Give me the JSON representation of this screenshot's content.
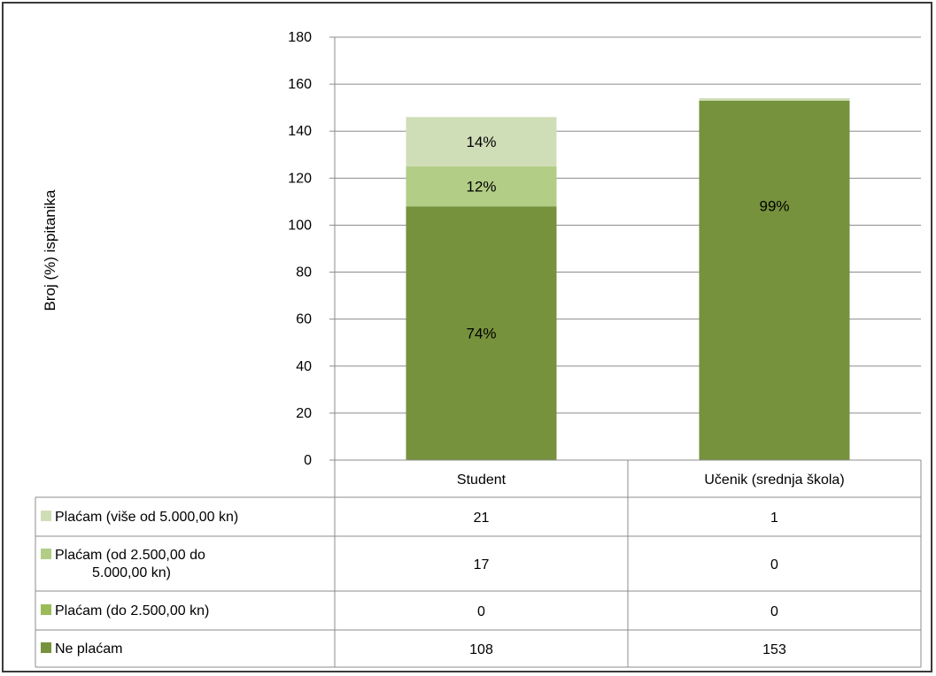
{
  "chart_data": {
    "type": "bar",
    "stacked": true,
    "ylabel": "Broj (%) ispitanika",
    "ylim": [
      0,
      180
    ],
    "yticks": [
      0,
      20,
      40,
      60,
      80,
      100,
      120,
      140,
      160,
      180
    ],
    "categories": [
      "Student",
      "Učenik (srednja škola)"
    ],
    "grid": true,
    "series": [
      {
        "name": "Ne plaćam",
        "values": [
          108,
          153
        ],
        "labels": [
          "74%",
          "99%"
        ],
        "color": "#76923c"
      },
      {
        "name": "Plaćam (do 2.500,00 kn)",
        "values": [
          0,
          0
        ],
        "labels": [
          "",
          ""
        ],
        "color": "#9bbb59"
      },
      {
        "name": "Plaćam (od 2.500,00 do 5.000,00 kn)",
        "values": [
          17,
          0
        ],
        "labels": [
          "12%",
          ""
        ],
        "color": "#b2cd85"
      },
      {
        "name": "Plaćam (više od 5.000,00 kn)",
        "values": [
          21,
          1
        ],
        "labels": [
          "14%",
          ""
        ],
        "color": "#d0deb8"
      }
    ],
    "table_rows": [
      {
        "legend": "Plaćam (više od 5.000,00 kn)",
        "legend_lines": [
          "Plaćam (više od 5.000,00 kn)"
        ],
        "values": [
          "21",
          "1"
        ],
        "color": "#d0deb8"
      },
      {
        "legend": "Plaćam (od 2.500,00 do 5.000,00 kn)",
        "legend_lines": [
          "Plaćam (od 2.500,00 do",
          "5.000,00 kn)"
        ],
        "values": [
          "17",
          "0"
        ],
        "color": "#b2cd85"
      },
      {
        "legend": "Plaćam (do 2.500,00 kn)",
        "legend_lines": [
          "Plaćam (do 2.500,00 kn)"
        ],
        "values": [
          "0",
          "0"
        ],
        "color": "#9bbb59"
      },
      {
        "legend": "Ne plaćam",
        "legend_lines": [
          "Ne plaćam"
        ],
        "values": [
          "108",
          "153"
        ],
        "color": "#76923c"
      }
    ]
  }
}
